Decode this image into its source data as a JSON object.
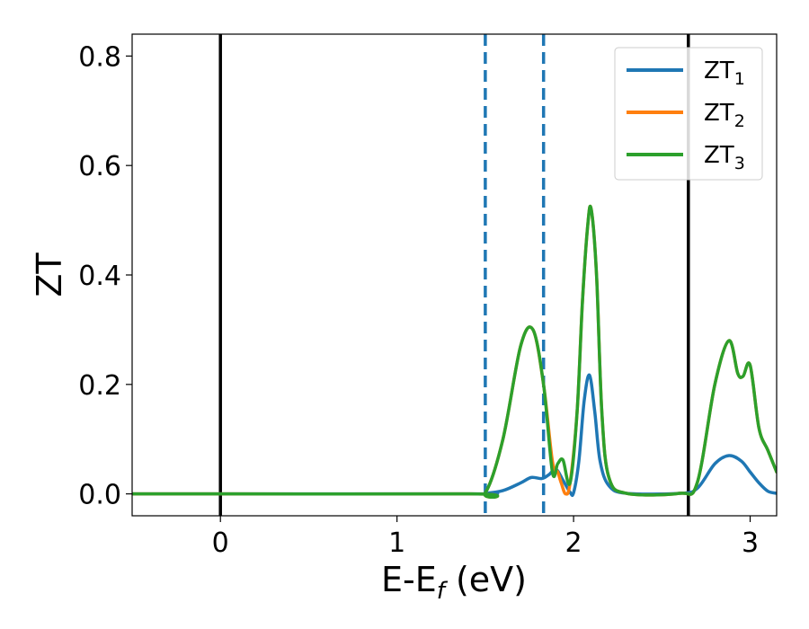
{
  "chart_data": {
    "type": "line",
    "xlabel": "E-E",
    "xlabel_sub": "f",
    "xlabel_unit": "(eV)",
    "ylabel": "ZT",
    "xlim": [
      -0.5,
      3.15
    ],
    "ylim": [
      -0.04,
      0.84
    ],
    "xticks": [
      {
        "value": 0,
        "label": "0"
      },
      {
        "value": 1,
        "label": "1"
      },
      {
        "value": 2,
        "label": "2"
      },
      {
        "value": 3,
        "label": "3"
      }
    ],
    "yticks": [
      {
        "value": 0.0,
        "label": "0.0"
      },
      {
        "value": 0.2,
        "label": "0.2"
      },
      {
        "value": 0.4,
        "label": "0.4"
      },
      {
        "value": 0.6,
        "label": "0.6"
      },
      {
        "value": 0.8,
        "label": "0.8"
      }
    ],
    "grid": false,
    "legend_position": "top-right",
    "vlines": [
      {
        "x": 0.0,
        "style": "solid",
        "color": "#000000"
      },
      {
        "x": 2.65,
        "style": "solid",
        "color": "#000000"
      },
      {
        "x": 1.5,
        "style": "dashed",
        "color": "#1f77b4"
      },
      {
        "x": 1.83,
        "style": "dashed",
        "color": "#1f77b4"
      }
    ],
    "series": [
      {
        "name": "ZT",
        "sub": "1",
        "color": "#1f77b4",
        "x": [
          -0.5,
          1.4,
          1.5,
          1.6,
          1.7,
          1.76,
          1.82,
          1.86,
          1.9,
          1.94,
          1.98,
          2.0,
          2.03,
          2.06,
          2.09,
          2.12,
          2.15,
          2.2,
          2.3,
          2.6,
          2.7,
          2.8,
          2.88,
          2.95,
          3.0,
          3.05,
          3.1,
          3.15
        ],
        "y": [
          0,
          0,
          0.001,
          0.006,
          0.02,
          0.03,
          0.028,
          0.035,
          0.045,
          0.025,
          0.003,
          0.002,
          0.06,
          0.17,
          0.217,
          0.15,
          0.06,
          0.015,
          0.001,
          0.001,
          0.01,
          0.055,
          0.07,
          0.06,
          0.04,
          0.02,
          0.005,
          0.001
        ]
      },
      {
        "name": "ZT",
        "sub": "2",
        "color": "#ff7f0e",
        "x": [
          -0.5,
          1.4,
          1.5,
          1.6,
          1.7,
          1.77,
          1.83,
          1.88,
          1.91,
          1.93,
          1.955,
          1.98,
          2.02,
          2.05,
          2.08,
          2.1,
          2.13,
          2.16,
          2.2,
          2.3,
          2.6,
          2.7,
          2.8,
          2.88,
          2.93,
          2.96,
          3.0,
          3.05,
          3.1,
          3.15
        ],
        "y": [
          0,
          0,
          0.002,
          0.1,
          0.27,
          0.3,
          0.2,
          0.06,
          0.04,
          0.02,
          0.0,
          0.02,
          0.15,
          0.35,
          0.49,
          0.52,
          0.4,
          0.15,
          0.03,
          0.001,
          0.001,
          0.02,
          0.2,
          0.28,
          0.22,
          0.215,
          0.235,
          0.12,
          0.08,
          0.04
        ]
      },
      {
        "name": "ZT",
        "sub": "3",
        "color": "#2ca02c",
        "x": [
          -0.5,
          1.4,
          1.5,
          1.6,
          1.7,
          1.77,
          1.83,
          1.88,
          1.91,
          1.94,
          1.98,
          2.02,
          2.05,
          2.08,
          2.1,
          2.13,
          2.16,
          2.2,
          2.3,
          2.6,
          2.7,
          2.8,
          2.88,
          2.93,
          2.96,
          3.0,
          3.05,
          3.1,
          3.15
        ],
        "y": [
          0,
          0,
          0.002,
          0.1,
          0.27,
          0.3,
          0.2,
          0.04,
          0.055,
          0.062,
          0.02,
          0.15,
          0.35,
          0.49,
          0.52,
          0.4,
          0.15,
          0.03,
          0.001,
          0.001,
          0.02,
          0.2,
          0.28,
          0.22,
          0.215,
          0.235,
          0.12,
          0.08,
          0.04
        ]
      }
    ]
  }
}
